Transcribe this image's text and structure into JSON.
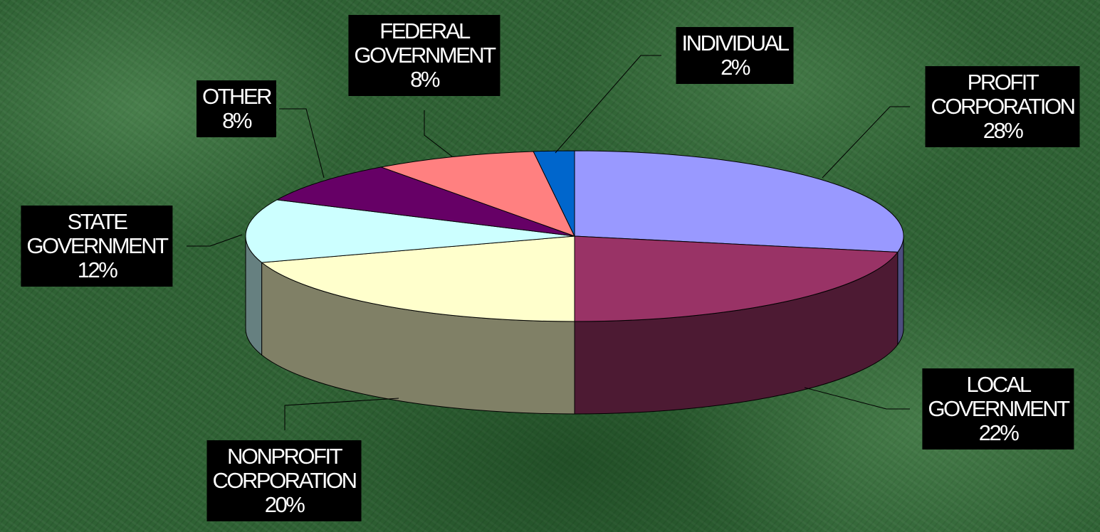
{
  "chart_data": {
    "type": "pie",
    "categories": [
      "PROFIT CORPORATION",
      "LOCAL GOVERNMENT",
      "NONPROFIT CORPORATION",
      "STATE GOVERNMENT",
      "OTHER",
      "FEDERAL GOVERNMENT",
      "INDIVIDUAL"
    ],
    "values": [
      28,
      22,
      20,
      12,
      8,
      8,
      2
    ],
    "value_labels": [
      "28%",
      "22%",
      "20%",
      "12%",
      "8%",
      "8%",
      "2%"
    ],
    "colors": [
      "#9999ff",
      "#993366",
      "#ffffcc",
      "#ccffff",
      "#660066",
      "#ff8080",
      "#0066cc"
    ]
  }
}
